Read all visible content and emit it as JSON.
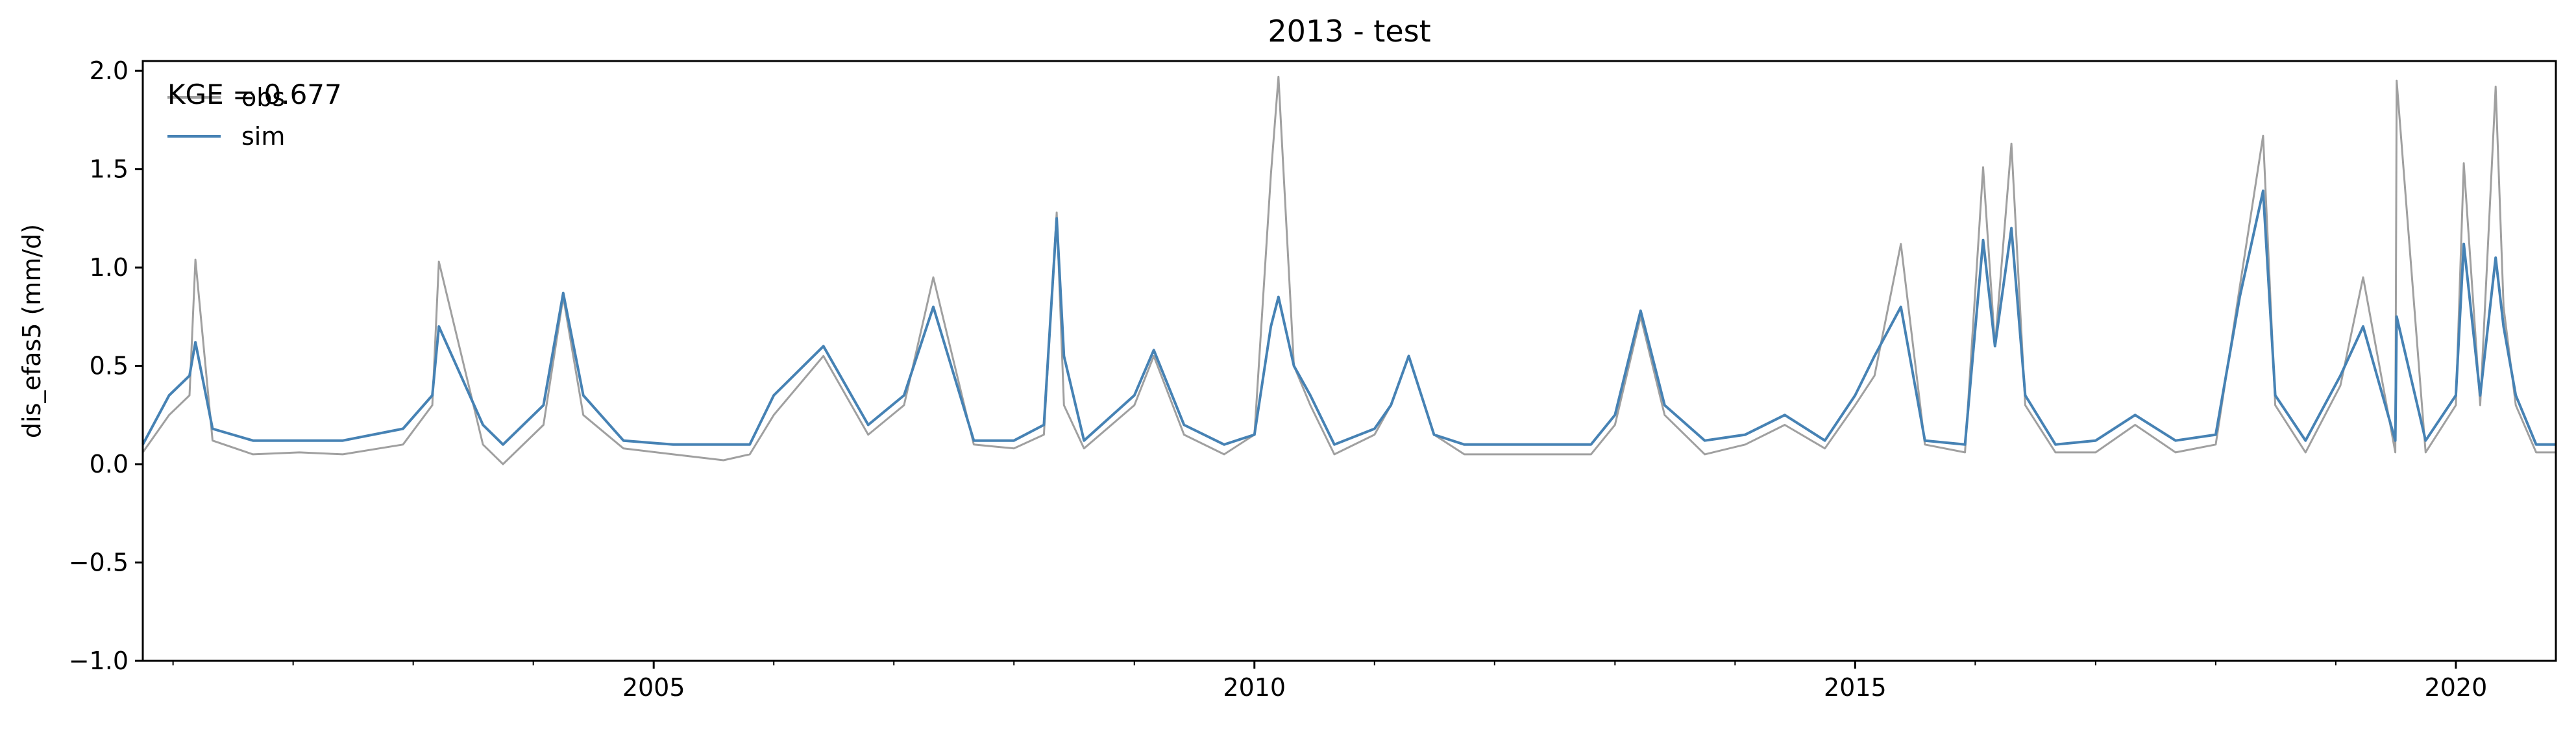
{
  "chart_data": {
    "type": "line",
    "title": "2013 - test",
    "xlabel": "",
    "ylabel": "dis_efas5 (mm/d)",
    "x_range": [
      "2000-10-01",
      "2020-10-31"
    ],
    "ylim": [
      -1.0,
      2.05
    ],
    "y_ticks": [
      -1.0,
      -0.5,
      0.0,
      0.5,
      1.0,
      1.5,
      2.0
    ],
    "y_tick_labels": [
      "−1.0",
      "−0.5",
      "0.0",
      "0.5",
      "1.0",
      "1.5",
      "2.0"
    ],
    "x_ticks": [
      "2005-01-01",
      "2010-01-01",
      "2015-01-01",
      "2020-01-01"
    ],
    "x_tick_labels": [
      "2005",
      "2010",
      "2015",
      "2020"
    ],
    "grid": false,
    "legend_position": "upper-left",
    "annotation": "KGE = 0.677",
    "series": [
      {
        "name": "obs",
        "color": "#a0a0a0",
        "x": [
          "2000-10-01",
          "2000-12-20",
          "2001-02-20",
          "2001-03-10",
          "2001-05-01",
          "2001-09-01",
          "2002-01-20",
          "2002-06-01",
          "2002-12-01",
          "2003-02-28",
          "2003-03-20",
          "2003-08-01",
          "2003-10-01",
          "2004-02-01",
          "2004-04-01",
          "2004-06-01",
          "2004-10-01",
          "2005-03-01",
          "2005-08-01",
          "2005-10-20",
          "2006-01-01",
          "2006-06-01",
          "2006-10-15",
          "2007-02-01",
          "2007-05-01",
          "2007-09-01",
          "2008-01-01",
          "2008-04-01",
          "2008-05-10",
          "2008-06-01",
          "2008-08-01",
          "2009-01-01",
          "2009-03-01",
          "2009-06-01",
          "2009-10-01",
          "2010-01-01",
          "2010-02-20",
          "2010-03-15",
          "2010-05-01",
          "2010-06-20",
          "2010-09-01",
          "2011-01-01",
          "2011-02-20",
          "2011-04-15",
          "2011-07-01",
          "2011-10-01",
          "2012-02-01",
          "2012-06-01",
          "2012-10-20",
          "2013-01-01",
          "2013-03-20",
          "2013-06-01",
          "2013-10-01",
          "2014-02-01",
          "2014-06-01",
          "2014-10-01",
          "2015-01-01",
          "2015-03-01",
          "2015-05-20",
          "2015-08-01",
          "2015-12-01",
          "2016-01-25",
          "2016-03-01",
          "2016-04-20",
          "2016-06-01",
          "2016-09-01",
          "2017-01-01",
          "2017-05-01",
          "2017-09-01",
          "2018-01-01",
          "2018-03-15",
          "2018-05-25",
          "2018-07-01",
          "2018-10-01",
          "2019-01-15",
          "2019-03-25",
          "2019-07-01",
          "2019-07-05",
          "2019-10-01",
          "2020-01-01",
          "2020-01-25",
          "2020-03-15",
          "2020-05-01",
          "2020-05-25",
          "2020-07-01",
          "2020-09-01",
          "2020-10-31"
        ],
        "values": [
          0.06,
          0.25,
          0.35,
          1.04,
          0.12,
          0.05,
          0.06,
          0.05,
          0.1,
          0.3,
          1.03,
          0.1,
          0.0,
          0.2,
          0.85,
          0.25,
          0.08,
          0.05,
          0.02,
          0.05,
          0.25,
          0.55,
          0.15,
          0.3,
          0.95,
          0.1,
          0.08,
          0.15,
          1.28,
          0.3,
          0.08,
          0.3,
          0.55,
          0.15,
          0.05,
          0.15,
          1.47,
          1.97,
          0.5,
          0.3,
          0.05,
          0.15,
          0.3,
          0.55,
          0.15,
          0.05,
          0.05,
          0.05,
          0.05,
          0.2,
          0.75,
          0.25,
          0.05,
          0.1,
          0.2,
          0.08,
          0.3,
          0.45,
          1.12,
          0.1,
          0.06,
          1.51,
          0.6,
          1.63,
          0.3,
          0.06,
          0.06,
          0.2,
          0.06,
          0.1,
          0.9,
          1.67,
          0.3,
          0.06,
          0.4,
          0.95,
          0.06,
          1.95,
          0.06,
          0.3,
          1.53,
          0.3,
          1.92,
          0.8,
          0.3,
          0.06,
          0.06
        ]
      },
      {
        "name": "sim",
        "color": "#4682b4",
        "x": [
          "2000-10-01",
          "2000-12-20",
          "2001-02-20",
          "2001-03-10",
          "2001-05-01",
          "2001-09-01",
          "2002-01-20",
          "2002-06-01",
          "2002-12-01",
          "2003-02-28",
          "2003-03-20",
          "2003-08-01",
          "2003-10-01",
          "2004-02-01",
          "2004-04-01",
          "2004-06-01",
          "2004-10-01",
          "2005-03-01",
          "2005-08-01",
          "2005-10-20",
          "2006-01-01",
          "2006-06-01",
          "2006-10-15",
          "2007-02-01",
          "2007-05-01",
          "2007-09-01",
          "2008-01-01",
          "2008-04-01",
          "2008-05-10",
          "2008-06-01",
          "2008-08-01",
          "2009-01-01",
          "2009-03-01",
          "2009-06-01",
          "2009-10-01",
          "2010-01-01",
          "2010-02-20",
          "2010-03-15",
          "2010-05-01",
          "2010-06-20",
          "2010-09-01",
          "2011-01-01",
          "2011-02-20",
          "2011-04-15",
          "2011-07-01",
          "2011-10-01",
          "2012-02-01",
          "2012-06-01",
          "2012-10-20",
          "2013-01-01",
          "2013-03-20",
          "2013-06-01",
          "2013-10-01",
          "2014-02-01",
          "2014-06-01",
          "2014-10-01",
          "2015-01-01",
          "2015-03-01",
          "2015-05-20",
          "2015-08-01",
          "2015-12-01",
          "2016-01-25",
          "2016-03-01",
          "2016-04-20",
          "2016-06-01",
          "2016-09-01",
          "2017-01-01",
          "2017-05-01",
          "2017-09-01",
          "2018-01-01",
          "2018-03-15",
          "2018-05-25",
          "2018-07-01",
          "2018-10-01",
          "2019-01-15",
          "2019-03-25",
          "2019-07-01",
          "2019-07-05",
          "2019-10-01",
          "2020-01-01",
          "2020-01-25",
          "2020-03-15",
          "2020-05-01",
          "2020-05-25",
          "2020-07-01",
          "2020-09-01",
          "2020-10-31"
        ],
        "values": [
          0.1,
          0.35,
          0.45,
          0.62,
          0.18,
          0.12,
          0.12,
          0.12,
          0.18,
          0.35,
          0.7,
          0.2,
          0.1,
          0.3,
          0.87,
          0.35,
          0.12,
          0.1,
          0.1,
          0.1,
          0.35,
          0.6,
          0.2,
          0.35,
          0.8,
          0.12,
          0.12,
          0.2,
          1.25,
          0.55,
          0.12,
          0.35,
          0.58,
          0.2,
          0.1,
          0.15,
          0.7,
          0.85,
          0.5,
          0.35,
          0.1,
          0.18,
          0.3,
          0.55,
          0.15,
          0.1,
          0.1,
          0.1,
          0.1,
          0.25,
          0.78,
          0.3,
          0.12,
          0.15,
          0.25,
          0.12,
          0.35,
          0.55,
          0.8,
          0.12,
          0.1,
          1.14,
          0.6,
          1.2,
          0.35,
          0.1,
          0.12,
          0.25,
          0.12,
          0.15,
          0.85,
          1.39,
          0.35,
          0.12,
          0.45,
          0.7,
          0.12,
          0.75,
          0.12,
          0.35,
          1.12,
          0.35,
          1.05,
          0.7,
          0.35,
          0.1,
          0.1
        ]
      }
    ]
  }
}
